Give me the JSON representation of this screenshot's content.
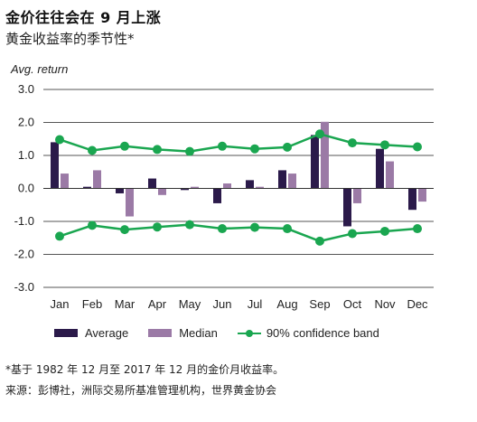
{
  "header": {
    "title": "金价往往会在 9 月上涨",
    "subtitle": "黄金收益率的季节性*"
  },
  "chart_data": {
    "type": "bar",
    "ylabel": "Avg. return",
    "ylim": [
      -3.0,
      3.0
    ],
    "yticks": [
      "3.0",
      "2.0",
      "1.0",
      "0.0",
      "-1.0",
      "-2.0",
      "-3.0"
    ],
    "categories": [
      "Jan",
      "Feb",
      "Mar",
      "Apr",
      "May",
      "Jun",
      "Jul",
      "Aug",
      "Sep",
      "Oct",
      "Nov",
      "Dec"
    ],
    "series": [
      {
        "name": "Average",
        "kind": "bar",
        "color": "#2b1a4a",
        "values": [
          1.4,
          0.05,
          -0.15,
          0.3,
          -0.05,
          -0.45,
          0.25,
          0.55,
          1.62,
          -1.15,
          1.2,
          -0.65
        ]
      },
      {
        "name": "Median",
        "kind": "bar",
        "color": "#9b7aa6",
        "values": [
          0.45,
          0.55,
          -0.85,
          -0.2,
          0.05,
          0.15,
          0.05,
          0.45,
          2.02,
          -0.45,
          0.82,
          -0.4
        ]
      },
      {
        "name": "90% confidence band",
        "kind": "line",
        "color": "#1aa650",
        "upper": [
          1.48,
          1.15,
          1.28,
          1.18,
          1.12,
          1.28,
          1.2,
          1.25,
          1.65,
          1.38,
          1.32,
          1.26
        ],
        "lower": [
          -1.45,
          -1.12,
          -1.25,
          -1.17,
          -1.1,
          -1.22,
          -1.18,
          -1.22,
          -1.6,
          -1.37,
          -1.3,
          -1.22
        ]
      }
    ],
    "grid": true
  },
  "legend": {
    "average": "Average",
    "median": "Median",
    "band": "90% confidence band",
    "colors": {
      "average": "#2b1a4a",
      "median": "#9b7aa6",
      "band": "#1aa650"
    }
  },
  "footnote": {
    "note": "*基于 1982 年 12 月至 2017 年 12 月的金价月收益率。",
    "source": "来源：彭博社，洲际交易所基准管理机构，世界黄金协会"
  }
}
